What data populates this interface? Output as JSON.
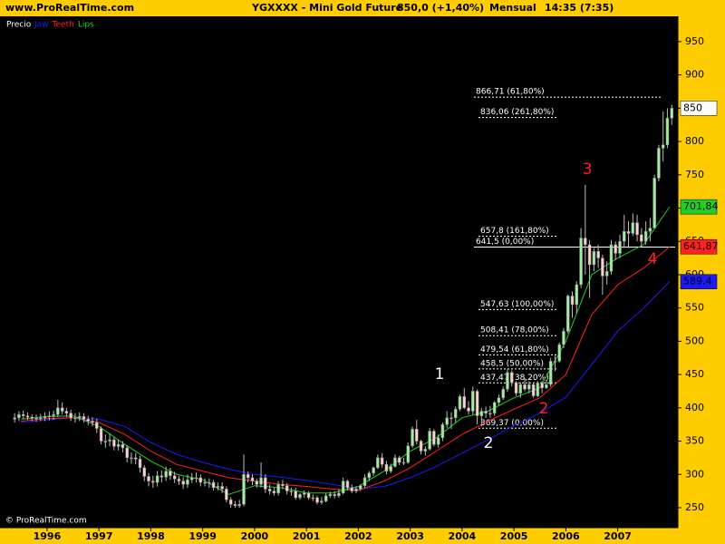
{
  "chart_data": {
    "type": "candlestick",
    "source": "www.ProRealTime.com",
    "title": "YGXXXX - Mini Gold Future",
    "price_change": "850,0 (+1,40%)",
    "period": "Mensual",
    "time": "14:35 (7:35)",
    "copyright": "© ProRealTime.com",
    "price_label": "Precio",
    "xlim": [
      1995.18,
      2008.16
    ],
    "xticks": [
      1996,
      1997,
      1998,
      1999,
      2000,
      2001,
      2002,
      2003,
      2004,
      2005,
      2006,
      2007
    ],
    "ylim": [
      220,
      988
    ],
    "yticks": [
      250,
      300,
      350,
      400,
      450,
      500,
      550,
      600,
      650,
      700,
      750,
      800,
      850,
      900,
      950
    ],
    "grid": false,
    "up_color": "#9df09d",
    "down_color": "#ffd0d0",
    "candles": {
      "x": [
        1995.375,
        1995.458,
        1995.542,
        1995.625,
        1995.708,
        1995.792,
        1995.875,
        1995.958,
        1996.042,
        1996.125,
        1996.208,
        1996.292,
        1996.375,
        1996.458,
        1996.542,
        1996.625,
        1996.708,
        1996.792,
        1996.875,
        1996.958,
        1997.042,
        1997.125,
        1997.208,
        1997.292,
        1997.375,
        1997.458,
        1997.542,
        1997.625,
        1997.708,
        1997.792,
        1997.875,
        1997.958,
        1998.042,
        1998.125,
        1998.208,
        1998.292,
        1998.375,
        1998.458,
        1998.542,
        1998.625,
        1998.708,
        1998.792,
        1998.875,
        1998.958,
        1999.042,
        1999.125,
        1999.208,
        1999.292,
        1999.375,
        1999.458,
        1999.542,
        1999.625,
        1999.708,
        1999.792,
        1999.875,
        1999.958,
        2000.042,
        2000.125,
        2000.208,
        2000.292,
        2000.375,
        2000.458,
        2000.542,
        2000.625,
        2000.708,
        2000.792,
        2000.875,
        2000.958,
        2001.042,
        2001.125,
        2001.208,
        2001.292,
        2001.375,
        2001.458,
        2001.542,
        2001.625,
        2001.708,
        2001.792,
        2001.875,
        2001.958,
        2002.042,
        2002.125,
        2002.208,
        2002.292,
        2002.375,
        2002.458,
        2002.542,
        2002.625,
        2002.708,
        2002.792,
        2002.875,
        2002.958,
        2003.042,
        2003.125,
        2003.208,
        2003.292,
        2003.375,
        2003.458,
        2003.542,
        2003.625,
        2003.708,
        2003.792,
        2003.875,
        2003.958,
        2004.042,
        2004.125,
        2004.208,
        2004.292,
        2004.375,
        2004.458,
        2004.542,
        2004.625,
        2004.708,
        2004.792,
        2004.875,
        2004.958,
        2005.042,
        2005.125,
        2005.208,
        2005.292,
        2005.375,
        2005.458,
        2005.542,
        2005.625,
        2005.708,
        2005.792,
        2005.875,
        2005.958,
        2006.042,
        2006.125,
        2006.208,
        2006.292,
        2006.375,
        2006.458,
        2006.542,
        2006.625,
        2006.708,
        2006.792,
        2006.875,
        2006.958,
        2007.042,
        2007.125,
        2007.208,
        2007.292,
        2007.375,
        2007.458,
        2007.542,
        2007.625,
        2007.708,
        2007.792,
        2007.875,
        2007.958,
        2008.042
      ],
      "open": [
        383,
        385,
        390,
        388,
        386,
        384,
        385,
        385,
        387,
        388,
        390,
        400,
        395,
        392,
        385,
        385,
        387,
        383,
        380,
        378,
        369,
        350,
        350,
        352,
        342,
        345,
        340,
        325,
        325,
        323,
        310,
        297,
        290,
        288,
        298,
        296,
        305,
        298,
        293,
        290,
        285,
        292,
        295,
        295,
        288,
        287,
        288,
        280,
        282,
        278,
        262,
        255,
        253,
        255,
        300,
        295,
        290,
        285,
        295,
        278,
        275,
        272,
        285,
        283,
        275,
        275,
        265,
        270,
        272,
        265,
        265,
        258,
        260,
        268,
        270,
        268,
        272,
        290,
        280,
        275,
        278,
        283,
        295,
        302,
        310,
        325,
        315,
        305,
        312,
        325,
        318,
        318,
        343,
        368,
        350,
        335,
        338,
        365,
        345,
        355,
        375,
        385,
        385,
        398,
        417,
        400,
        395,
        425,
        388,
        395,
        392,
        392,
        408,
        415,
        428,
        453,
        438,
        422,
        435,
        428,
        435,
        418,
        437,
        430,
        435,
        470,
        470,
        495,
        515,
        568,
        555,
        585,
        655,
        645,
        615,
        635,
        625,
        598,
        605,
        645,
        632,
        650,
        665,
        662,
        678,
        660,
        650,
        665,
        670,
        745,
        790,
        795,
        835
      ],
      "high": [
        392,
        395,
        396,
        393,
        390,
        390,
        391,
        393,
        395,
        396,
        412,
        408,
        400,
        397,
        392,
        393,
        392,
        388,
        386,
        384,
        372,
        360,
        362,
        356,
        352,
        350,
        344,
        333,
        332,
        328,
        314,
        302,
        298,
        305,
        306,
        312,
        310,
        304,
        298,
        296,
        300,
        302,
        303,
        300,
        294,
        294,
        292,
        288,
        288,
        282,
        266,
        260,
        262,
        330,
        305,
        300,
        294,
        318,
        300,
        285,
        280,
        290,
        292,
        287,
        280,
        280,
        272,
        276,
        275,
        270,
        268,
        266,
        272,
        274,
        275,
        278,
        295,
        292,
        285,
        282,
        285,
        300,
        305,
        312,
        330,
        332,
        320,
        316,
        330,
        328,
        325,
        348,
        372,
        382,
        352,
        342,
        370,
        368,
        360,
        378,
        395,
        393,
        402,
        420,
        430,
        410,
        432,
        428,
        400,
        402,
        403,
        410,
        420,
        432,
        458,
        456,
        440,
        438,
        445,
        440,
        437,
        440,
        440,
        442,
        475,
        478,
        498,
        520,
        570,
        575,
        590,
        670,
        735,
        652,
        640,
        645,
        630,
        620,
        652,
        650,
        660,
        690,
        680,
        692,
        690,
        670,
        680,
        685,
        750,
        795,
        845,
        850,
        855
      ],
      "low": [
        378,
        380,
        383,
        382,
        380,
        379,
        380,
        380,
        381,
        382,
        386,
        390,
        386,
        380,
        378,
        380,
        378,
        374,
        372,
        362,
        345,
        340,
        342,
        336,
        336,
        333,
        318,
        316,
        315,
        303,
        290,
        282,
        280,
        282,
        288,
        290,
        292,
        287,
        284,
        278,
        280,
        287,
        288,
        282,
        282,
        280,
        276,
        276,
        272,
        258,
        250,
        250,
        250,
        252,
        288,
        284,
        280,
        280,
        272,
        270,
        268,
        268,
        278,
        270,
        268,
        262,
        262,
        265,
        262,
        260,
        255,
        255,
        258,
        265,
        264,
        265,
        270,
        276,
        272,
        272,
        275,
        280,
        290,
        298,
        308,
        310,
        300,
        302,
        310,
        314,
        314,
        316,
        340,
        345,
        330,
        328,
        336,
        342,
        340,
        350,
        370,
        368,
        378,
        395,
        398,
        390,
        390,
        375,
        372,
        385,
        385,
        388,
        404,
        412,
        424,
        432,
        418,
        415,
        425,
        422,
        415,
        416,
        422,
        428,
        432,
        455,
        468,
        490,
        512,
        535,
        542,
        580,
        600,
        565,
        605,
        610,
        570,
        585,
        600,
        622,
        625,
        640,
        640,
        658,
        650,
        642,
        645,
        650,
        670,
        740,
        770,
        790,
        825
      ],
      "close": [
        385,
        390,
        388,
        386,
        384,
        385,
        385,
        387,
        388,
        390,
        400,
        395,
        392,
        385,
        385,
        387,
        383,
        380,
        378,
        369,
        350,
        350,
        352,
        342,
        345,
        340,
        325,
        325,
        323,
        310,
        297,
        290,
        288,
        298,
        296,
        305,
        298,
        293,
        290,
        285,
        292,
        295,
        295,
        288,
        287,
        288,
        280,
        282,
        278,
        262,
        255,
        253,
        255,
        300,
        295,
        290,
        285,
        295,
        278,
        275,
        272,
        285,
        283,
        275,
        275,
        265,
        270,
        272,
        265,
        265,
        258,
        260,
        268,
        270,
        268,
        272,
        290,
        280,
        275,
        278,
        283,
        295,
        302,
        310,
        325,
        315,
        305,
        312,
        325,
        318,
        318,
        343,
        368,
        350,
        335,
        338,
        365,
        345,
        355,
        375,
        385,
        385,
        398,
        417,
        400,
        395,
        425,
        388,
        395,
        392,
        392,
        408,
        415,
        428,
        453,
        438,
        422,
        435,
        428,
        435,
        418,
        437,
        430,
        435,
        470,
        470,
        495,
        515,
        568,
        555,
        585,
        655,
        645,
        615,
        635,
        625,
        598,
        605,
        645,
        632,
        650,
        665,
        662,
        678,
        660,
        650,
        665,
        670,
        745,
        790,
        795,
        835,
        850
      ]
    },
    "series": [
      {
        "name": "Jaw",
        "color": "#1a1aff",
        "end_label": "589,4",
        "x": [
          1995.5,
          1996.0,
          1996.5,
          1997.0,
          1997.5,
          1998.0,
          1998.5,
          1999.0,
          1999.5,
          2000.0,
          2000.5,
          2001.0,
          2001.5,
          2002.0,
          2002.5,
          2003.0,
          2003.5,
          2004.0,
          2004.5,
          2005.0,
          2005.5,
          2006.0,
          2006.5,
          2007.0,
          2007.5,
          2008.0
        ],
        "values": [
          378,
          382,
          385,
          383,
          372,
          348,
          330,
          318,
          308,
          300,
          296,
          291,
          285,
          278,
          282,
          295,
          312,
          332,
          352,
          373,
          392,
          416,
          465,
          515,
          550,
          589.4
        ]
      },
      {
        "name": "Teeth",
        "color": "#ff2020",
        "end_label": "641,87",
        "x": [
          1995.5,
          1996.0,
          1996.5,
          1997.0,
          1997.5,
          1998.0,
          1998.5,
          1999.0,
          1999.5,
          2000.0,
          2000.5,
          2001.0,
          2001.5,
          2002.0,
          2002.5,
          2003.0,
          2003.5,
          2004.0,
          2004.5,
          2005.0,
          2005.5,
          2006.0,
          2006.5,
          2007.0,
          2007.5,
          2008.0
        ],
        "values": [
          380,
          384,
          385,
          378,
          360,
          335,
          315,
          305,
          295,
          290,
          285,
          282,
          278,
          276,
          290,
          310,
          335,
          360,
          380,
          398,
          415,
          450,
          540,
          585,
          610,
          641.87
        ]
      },
      {
        "name": "Lips",
        "color": "#20d020",
        "end_label": "701,84",
        "x": [
          1995.5,
          1996.0,
          1996.5,
          1997.0,
          1997.5,
          1998.0,
          1998.5,
          1999.0,
          1999.5,
          2000.0,
          2000.5,
          2001.0,
          2001.5,
          2002.0,
          2002.5,
          2003.0,
          2003.5,
          2004.0,
          2004.5,
          2005.0,
          2005.5,
          2006.0,
          2006.5,
          2007.0,
          2007.5,
          2008.0
        ],
        "values": [
          383,
          387,
          388,
          372,
          345,
          320,
          300,
          292,
          270,
          283,
          280,
          272,
          272,
          282,
          305,
          335,
          355,
          385,
          395,
          415,
          430,
          500,
          600,
          625,
          645,
          701.84
        ]
      }
    ],
    "fib_levels": [
      {
        "value": 866.71,
        "label": "866,71 (61,80%)",
        "extend": true
      },
      {
        "value": 836.06,
        "label": "836,06 (261,80%)",
        "extend": false
      },
      {
        "value": 657.8,
        "label": "657,8 (161,80%)",
        "extend": false
      },
      {
        "value": 641.5,
        "label": "641,5 (0,00%)",
        "extend": true
      },
      {
        "value": 547.63,
        "label": "547,63 (100,00%)",
        "extend": false
      },
      {
        "value": 508.41,
        "label": "508,41 (78,00%)",
        "extend": false
      },
      {
        "value": 479.54,
        "label": "479,54 (61,80%)",
        "extend": false
      },
      {
        "value": 458.5,
        "label": "458,5 (50,00%)",
        "extend": false
      },
      {
        "value": 437.47,
        "label": "437,47 (38,20%)",
        "extend": false
      },
      {
        "value": 369.37,
        "label": "369,37 (0,00%)",
        "extend": false
      }
    ],
    "annotations": [
      {
        "text": "1",
        "color": "#ffffff"
      },
      {
        "text": "2",
        "color": "#ffffff"
      },
      {
        "text": "2",
        "color": "#ff2020"
      },
      {
        "text": "3",
        "color": "#ff2020"
      },
      {
        "text": "4",
        "color": "#ff2020"
      }
    ]
  }
}
